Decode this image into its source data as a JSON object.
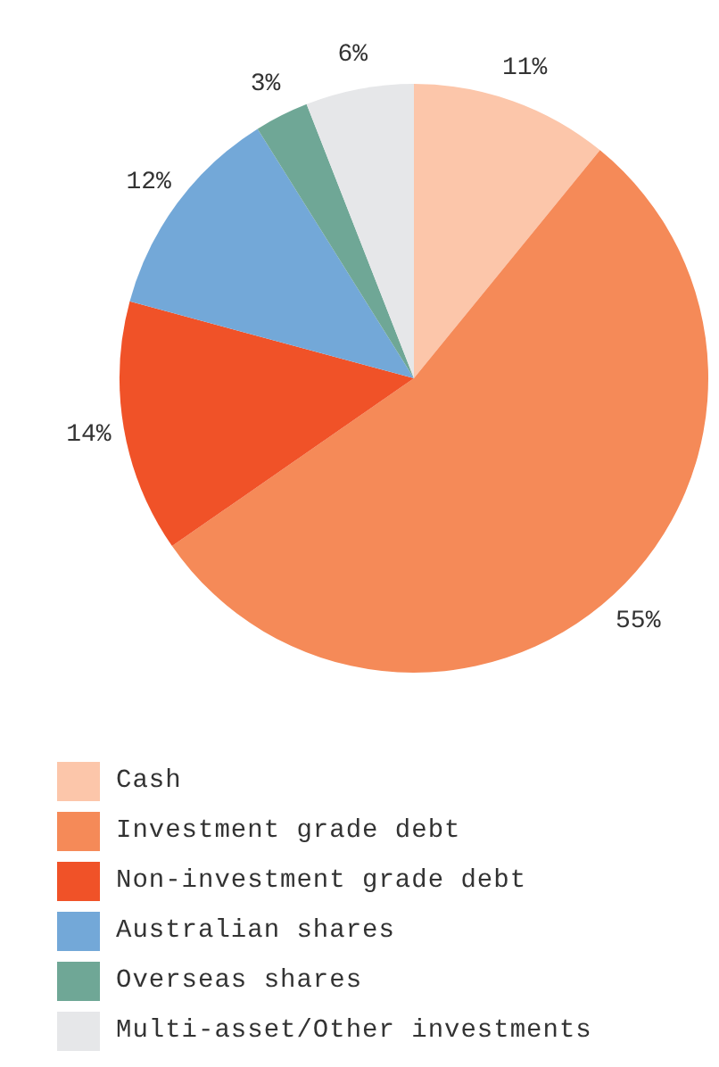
{
  "chart_data": {
    "type": "pie",
    "categories": [
      "Cash",
      "Investment grade debt",
      "Non-investment grade debt",
      "Australian shares",
      "Overseas shares",
      "Multi-asset/Other investments"
    ],
    "values": [
      11,
      55,
      14,
      12,
      3,
      6
    ],
    "value_labels": [
      "11%",
      "55%",
      "14%",
      "12%",
      "3%",
      "6%"
    ],
    "colors": [
      "#fcc6aa",
      "#f58a58",
      "#f05228",
      "#73a8d8",
      "#6fa796",
      "#e6e7e9"
    ],
    "legend": "bottom"
  }
}
